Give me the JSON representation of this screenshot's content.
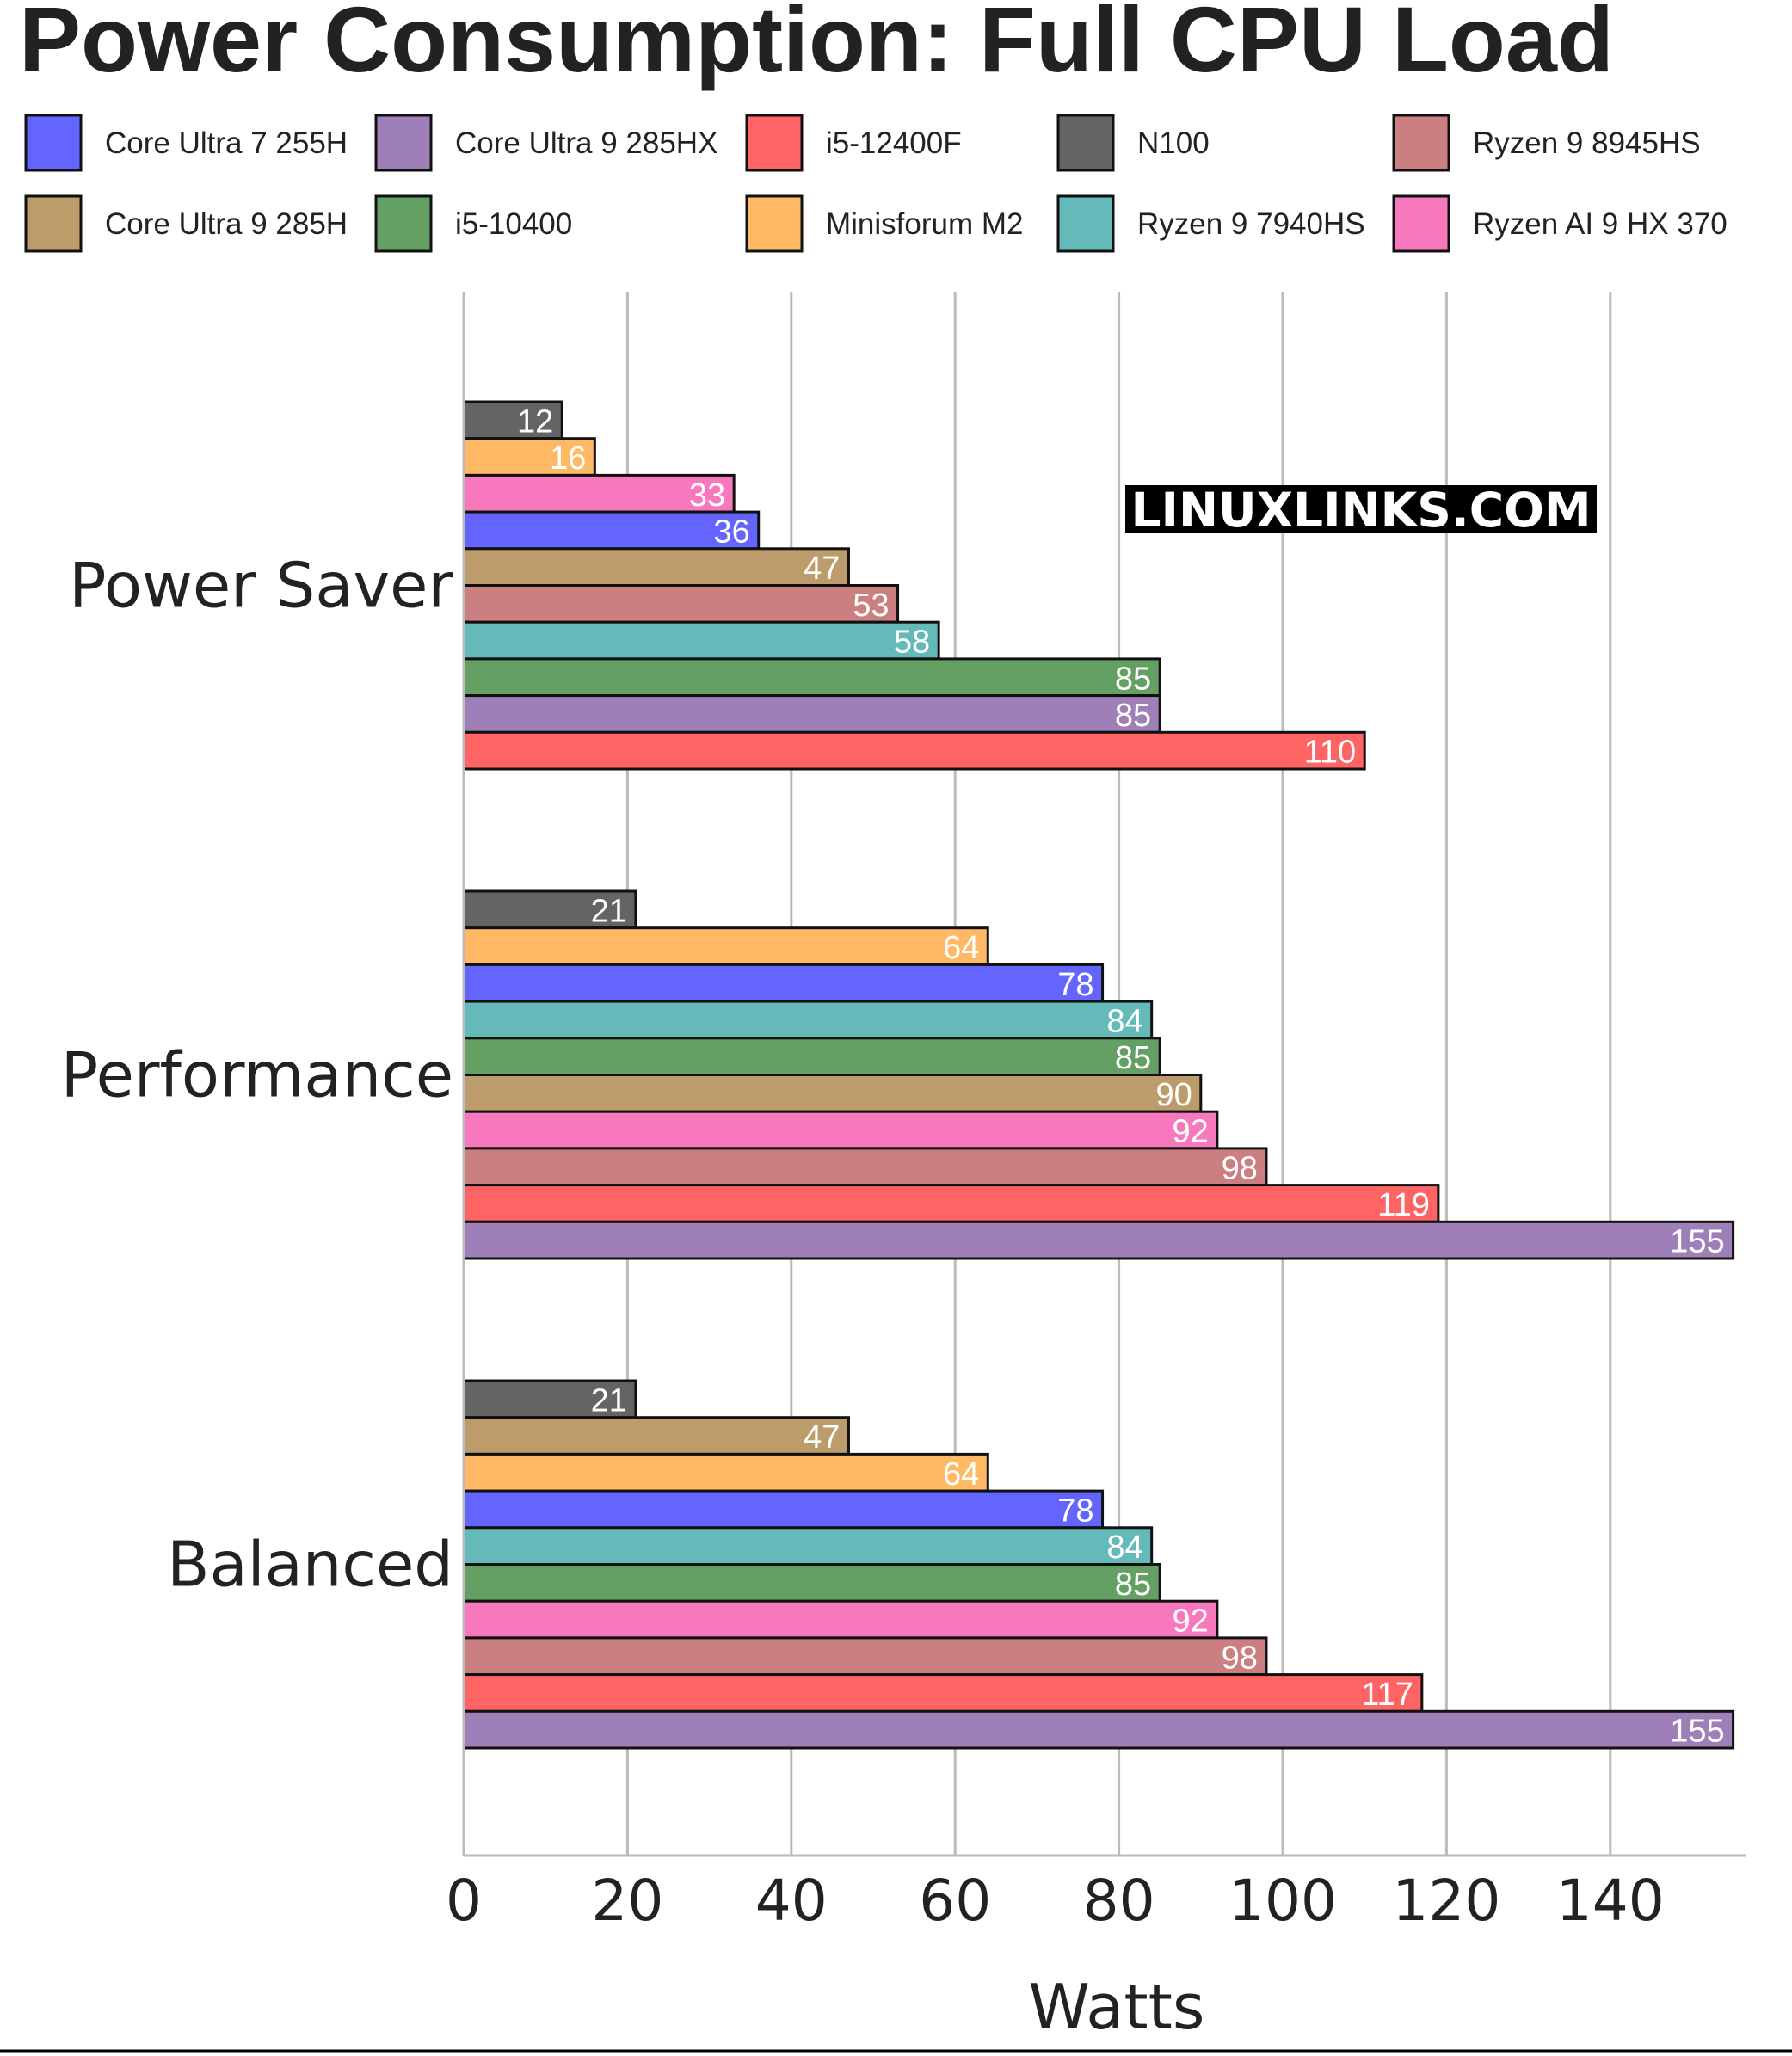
{
  "chart_data": {
    "type": "bar",
    "orientation": "horizontal",
    "title": "Power Consumption: Full CPU Load",
    "xlabel": "Watts",
    "ylabel": "",
    "xlim": [
      0,
      155
    ],
    "xticks": [
      0,
      20,
      40,
      60,
      80,
      100,
      120,
      140
    ],
    "grid": true,
    "legend_position": "top",
    "watermark": "LINUXLINKS.COM",
    "legend": [
      {
        "name": "Core Ultra 7 255H",
        "color": "#6464ff"
      },
      {
        "name": "Core Ultra 9 285HX",
        "color": "#9e7fb7"
      },
      {
        "name": "i5-12400F",
        "color": "#ff6464"
      },
      {
        "name": "N100",
        "color": "#646464"
      },
      {
        "name": "Ryzen 9 8945HS",
        "color": "#cc7f80"
      },
      {
        "name": "Core Ultra 9 285H",
        "color": "#bd9c6c"
      },
      {
        "name": "i5-10400",
        "color": "#64a064"
      },
      {
        "name": "Minisforum M2",
        "color": "#ffb964"
      },
      {
        "name": "Ryzen 9 7940HS",
        "color": "#64b9b9"
      },
      {
        "name": "Ryzen AI 9 HX 370",
        "color": "#f878be"
      }
    ],
    "groups": [
      {
        "name": "Power Saver",
        "bars": [
          {
            "series": "N100",
            "value": 12
          },
          {
            "series": "Minisforum M2",
            "value": 16
          },
          {
            "series": "Ryzen AI 9 HX 370",
            "value": 33
          },
          {
            "series": "Core Ultra 7 255H",
            "value": 36
          },
          {
            "series": "Core Ultra 9 285H",
            "value": 47
          },
          {
            "series": "Ryzen 9 8945HS",
            "value": 53
          },
          {
            "series": "Ryzen 9 7940HS",
            "value": 58
          },
          {
            "series": "i5-10400",
            "value": 85
          },
          {
            "series": "Core Ultra 9 285HX",
            "value": 85
          },
          {
            "series": "i5-12400F",
            "value": 110
          }
        ]
      },
      {
        "name": "Performance",
        "bars": [
          {
            "series": "N100",
            "value": 21
          },
          {
            "series": "Minisforum M2",
            "value": 64
          },
          {
            "series": "Core Ultra 7 255H",
            "value": 78
          },
          {
            "series": "Ryzen 9 7940HS",
            "value": 84
          },
          {
            "series": "i5-10400",
            "value": 85
          },
          {
            "series": "Core Ultra 9 285H",
            "value": 90
          },
          {
            "series": "Ryzen AI 9 HX 370",
            "value": 92
          },
          {
            "series": "Ryzen 9 8945HS",
            "value": 98
          },
          {
            "series": "i5-12400F",
            "value": 119
          },
          {
            "series": "Core Ultra 9 285HX",
            "value": 155
          }
        ]
      },
      {
        "name": "Balanced",
        "bars": [
          {
            "series": "N100",
            "value": 21
          },
          {
            "series": "Core Ultra 9 285H",
            "value": 47
          },
          {
            "series": "Minisforum M2",
            "value": 64
          },
          {
            "series": "Core Ultra 7 255H",
            "value": 78
          },
          {
            "series": "Ryzen 9 7940HS",
            "value": 84
          },
          {
            "series": "i5-10400",
            "value": 85
          },
          {
            "series": "Ryzen AI 9 HX 370",
            "value": 92
          },
          {
            "series": "Ryzen 9 8945HS",
            "value": 98
          },
          {
            "series": "i5-12400F",
            "value": 117
          },
          {
            "series": "Core Ultra 9 285HX",
            "value": 155
          }
        ]
      }
    ]
  }
}
